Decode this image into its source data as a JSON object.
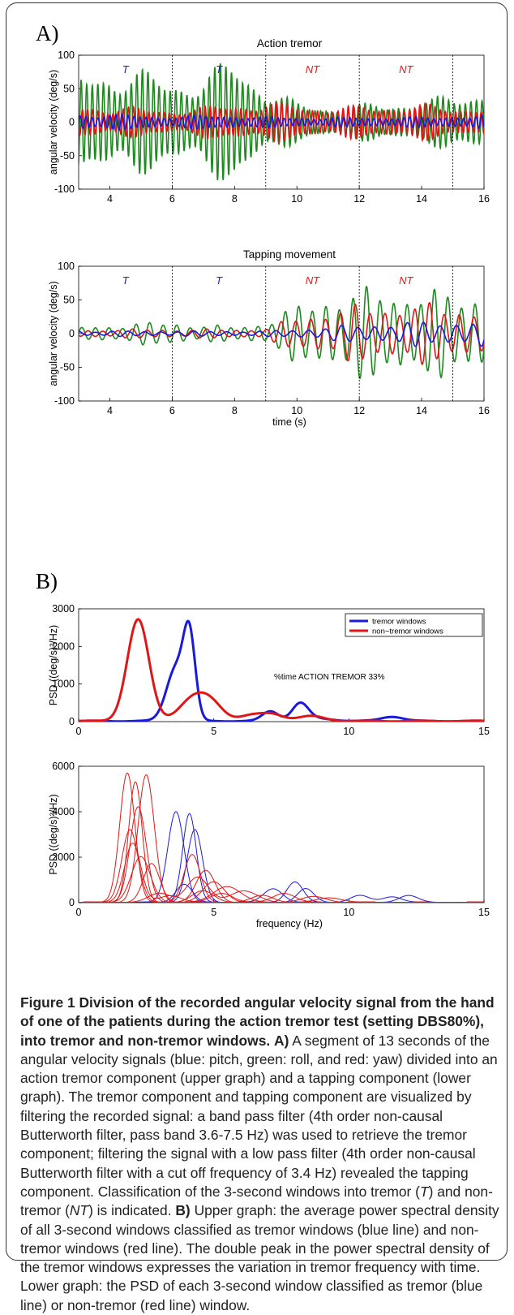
{
  "panel_labels": {
    "a": "A)",
    "b": "B)"
  },
  "colors": {
    "blue": "#1a1adc",
    "green": "#1e8a1e",
    "red": "#e01616",
    "marker_T": "#1c1ccc",
    "marker_NT": "#d02020"
  },
  "caption": {
    "title": "Figure 1 Division of the recorded angular velocity signal from the hand of one of the patients during the action tremor test (setting DBS80%), into tremor and non-tremor windows.",
    "a_label": "A)",
    "a_text": "A segment of 13 seconds of the angular velocity signals (blue: pitch, green: roll, and red: yaw) divided into an action tremor component (upper graph) and a tapping component (lower graph). The tremor component and tapping component are visualized by filtering the recorded signal: a band pass filter (4th order non-causal Butterworth filter, pass band 3.6-7.5 Hz) was used to retrieve the tremor component; filtering the signal with a low pass filter (4th order non-causal Butterworth filter with a cut off frequency of 3.4 Hz) revealed the tapping component. Classification of the 3-second windows into tremor (",
    "a_T": "T",
    "a_mid": ") and non-tremor (",
    "a_NT": "NT",
    "a_end": ") is indicated.",
    "b_label": "B)",
    "b_text": "Upper graph: the average power spectral density of all 3-second windows classified as tremor windows (blue line) and non-tremor windows (red line). The double peak in the power spectral density of the tremor windows expresses the variation in tremor frequency with time. Lower graph: the PSD of each 3-second window classified as tremor (blue line) or non-tremor (red line) window."
  },
  "chart_data": [
    {
      "type": "line",
      "title": "Action tremor",
      "xlabel": "",
      "ylabel": "angular velocity (deg/s)",
      "xlim": [
        3,
        16
      ],
      "ylim": [
        -100,
        100
      ],
      "xticks": [
        "4",
        "6",
        "8",
        "10",
        "12",
        "14",
        "16"
      ],
      "yticks": [
        "100",
        "50",
        "0",
        "-50",
        "-100"
      ],
      "window_boundaries": [
        6,
        9,
        12,
        15
      ],
      "window_labels": [
        {
          "x": 4.5,
          "text": "T"
        },
        {
          "x": 7.5,
          "text": "T"
        },
        {
          "x": 10.5,
          "text": "NT"
        },
        {
          "x": 13.5,
          "text": "NT"
        }
      ],
      "series": [
        {
          "color": "green",
          "freq_hz": 5.6,
          "envelope": {
            "x": [
              3,
              4,
              5,
              6,
              7,
              8,
              9,
              10,
              11,
              12,
              13,
              14,
              15,
              16
            ],
            "amp": [
              55,
              62,
              58,
              50,
              52,
              75,
              40,
              22,
              18,
              20,
              22,
              25,
              30,
              38
            ]
          }
        },
        {
          "color": "red",
          "freq_hz": 6.1,
          "envelope": {
            "x": [
              3,
              4,
              5,
              6,
              7,
              8,
              9,
              10,
              11,
              12,
              13,
              14,
              15,
              16
            ],
            "amp": [
              20,
              18,
              16,
              15,
              17,
              22,
              22,
              20,
              18,
              18,
              20,
              20,
              18,
              18
            ]
          }
        },
        {
          "color": "blue",
          "freq_hz": 5.2,
          "envelope": {
            "x": [
              3,
              4,
              5,
              6,
              7,
              8,
              9,
              10,
              11,
              12,
              13,
              14,
              15,
              16
            ],
            "amp": [
              10,
              9,
              8,
              7,
              8,
              8,
              6,
              6,
              5,
              6,
              6,
              6,
              7,
              8
            ]
          }
        }
      ]
    },
    {
      "type": "line",
      "title": "Tapping movement",
      "xlabel": "time (s)",
      "ylabel": "angular velocity (deg/s)",
      "xlim": [
        3,
        16
      ],
      "ylim": [
        -100,
        100
      ],
      "xticks": [
        "4",
        "6",
        "8",
        "10",
        "12",
        "14",
        "16"
      ],
      "yticks": [
        "100",
        "50",
        "0",
        "-50",
        "-100"
      ],
      "window_boundaries": [
        6,
        9,
        12,
        15
      ],
      "window_labels": [
        {
          "x": 4.5,
          "text": "T"
        },
        {
          "x": 7.5,
          "text": "T"
        },
        {
          "x": 10.5,
          "text": "NT"
        },
        {
          "x": 13.5,
          "text": "NT"
        }
      ],
      "series": [
        {
          "color": "green",
          "freq_hz": 2.3,
          "envelope": {
            "x": [
              3,
              4,
              5,
              6,
              7,
              8,
              9,
              10,
              11,
              12,
              13,
              14,
              15,
              16
            ],
            "amp": [
              8,
              10,
              12,
              14,
              10,
              8,
              14,
              32,
              45,
              50,
              52,
              50,
              46,
              50
            ]
          }
        },
        {
          "color": "red",
          "freq_hz": 2.1,
          "envelope": {
            "x": [
              3,
              4,
              5,
              6,
              7,
              8,
              9,
              10,
              11,
              12,
              13,
              14,
              15,
              16
            ],
            "amp": [
              4,
              5,
              5,
              5,
              5,
              5,
              6,
              20,
              28,
              32,
              34,
              34,
              32,
              30
            ]
          }
        },
        {
          "color": "blue",
          "freq_hz": 1.9,
          "envelope": {
            "x": [
              3,
              4,
              5,
              6,
              7,
              8,
              9,
              10,
              11,
              12,
              13,
              14,
              15,
              16
            ],
            "amp": [
              3,
              3,
              3,
              3,
              3,
              3,
              3,
              5,
              8,
              10,
              12,
              14,
              14,
              15
            ]
          }
        }
      ]
    },
    {
      "type": "line",
      "title": "",
      "xlabel": "",
      "ylabel": "PSD ((deg/s)²/Hz)",
      "xlim": [
        0,
        15
      ],
      "ylim": [
        0,
        3000
      ],
      "xticks": [
        "0",
        "5",
        "10",
        "15"
      ],
      "yticks": [
        "3000",
        "2000",
        "1000",
        "0"
      ],
      "annotation": "%time ACTION TREMOR 33%",
      "legend": {
        "position": "top-right",
        "entries": [
          {
            "name": "tremor windows",
            "color": "blue"
          },
          {
            "name": "non−tremor windows",
            "color": "red"
          }
        ]
      },
      "series": [
        {
          "name": "tremor windows",
          "color": "blue",
          "peaks": [
            [
              3.6,
              1400,
              0.35
            ],
            [
              4.1,
              2100,
              0.22
            ],
            [
              7.1,
              260,
              0.3
            ],
            [
              8.2,
              470,
              0.3
            ],
            [
              11.6,
              120,
              0.4
            ],
            [
              9.0,
              60,
              0.5
            ]
          ]
        },
        {
          "name": "non−tremor windows",
          "color": "red",
          "peaks": [
            [
              2.2,
              2700,
              0.4
            ],
            [
              4.2,
              550,
              0.5
            ],
            [
              4.9,
              430,
              0.45
            ],
            [
              6.4,
              150,
              0.45
            ],
            [
              7.2,
              170,
              0.4
            ],
            [
              8.6,
              130,
              0.5
            ]
          ]
        }
      ]
    },
    {
      "type": "line",
      "title": "",
      "xlabel": "frequency (Hz)",
      "ylabel": "PSD ((deg/s)²/Hz)",
      "xlim": [
        0,
        15
      ],
      "ylim": [
        0,
        6000
      ],
      "xticks": [
        "0",
        "5",
        "10",
        "15"
      ],
      "yticks": [
        "6000",
        "4000",
        "2000",
        "0"
      ],
      "series": [
        {
          "color": "blue",
          "peaks": [
            [
              3.6,
              4000,
              0.3
            ],
            [
              7.2,
              600,
              0.35
            ]
          ]
        },
        {
          "color": "blue",
          "peaks": [
            [
              4.1,
              3900,
              0.25
            ],
            [
              8.0,
              900,
              0.3
            ]
          ]
        },
        {
          "color": "blue",
          "peaks": [
            [
              4.3,
              3200,
              0.28
            ],
            [
              8.4,
              600,
              0.3
            ],
            [
              12.2,
              300,
              0.35
            ]
          ]
        },
        {
          "color": "blue",
          "peaks": [
            [
              3.9,
              800,
              0.3
            ],
            [
              10.4,
              300,
              0.35
            ],
            [
              11.6,
              250,
              0.35
            ]
          ]
        },
        {
          "color": "red",
          "peaks": [
            [
              1.8,
              5700,
              0.28
            ],
            [
              4.6,
              500,
              0.4
            ]
          ]
        },
        {
          "color": "red",
          "peaks": [
            [
              2.1,
              5300,
              0.25
            ],
            [
              5.3,
              400,
              0.4
            ]
          ]
        },
        {
          "color": "red",
          "peaks": [
            [
              2.5,
              5600,
              0.3
            ],
            [
              6.8,
              300,
              0.4
            ]
          ]
        },
        {
          "color": "red",
          "peaks": [
            [
              2.2,
              4200,
              0.3
            ],
            [
              4.7,
              1400,
              0.35
            ]
          ]
        },
        {
          "color": "red",
          "peaks": [
            [
              1.9,
              3200,
              0.3
            ],
            [
              4.2,
              2100,
              0.3
            ]
          ]
        },
        {
          "color": "red",
          "peaks": [
            [
              2.7,
              1700,
              0.3
            ],
            [
              5.0,
              900,
              0.4
            ],
            [
              7.6,
              400,
              0.4
            ]
          ]
        },
        {
          "color": "red",
          "peaks": [
            [
              2.0,
              2600,
              0.3
            ],
            [
              3.4,
              300,
              0.4
            ],
            [
              8.7,
              250,
              0.45
            ]
          ]
        },
        {
          "color": "red",
          "peaks": [
            [
              2.3,
              2000,
              0.35
            ],
            [
              5.5,
              700,
              0.5
            ],
            [
              9.3,
              200,
              0.45
            ]
          ]
        },
        {
          "color": "red",
          "peaks": [
            [
              3.0,
              400,
              0.4
            ],
            [
              4.4,
              1100,
              0.4
            ],
            [
              6.1,
              500,
              0.5
            ]
          ]
        }
      ]
    }
  ]
}
